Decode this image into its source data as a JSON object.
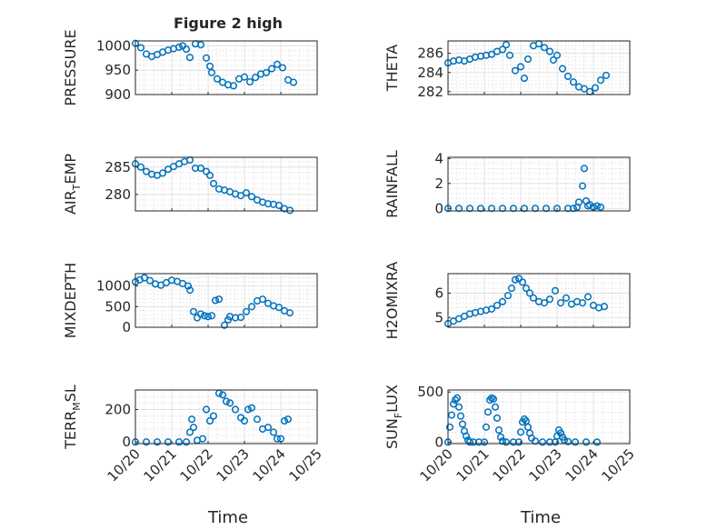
{
  "figure": {
    "title": "Figure 2 high"
  },
  "colors": {
    "marker": "#0072BD",
    "axis": "#262626",
    "background": "#ffffff"
  },
  "chart_data": [
    {
      "type": "scatter",
      "id": "pressure",
      "ylabel": "PRESSURE",
      "ylim": [
        900,
        1010
      ],
      "yticks": [
        900,
        950,
        1000
      ],
      "ytick_labels": [
        "900",
        "950",
        "1000"
      ],
      "x": [
        0.0,
        0.15,
        0.3,
        0.45,
        0.6,
        0.75,
        0.9,
        1.05,
        1.2,
        1.3,
        1.4,
        1.5,
        1.65,
        1.8,
        1.95,
        2.05,
        2.1,
        2.25,
        2.4,
        2.55,
        2.7,
        2.85,
        3.0,
        3.15,
        3.3,
        3.45,
        3.6,
        3.75,
        3.9,
        4.05,
        4.2,
        4.35
      ],
      "y": [
        1005,
        996,
        983,
        978,
        982,
        987,
        991,
        994,
        997,
        1000,
        993,
        976,
        1004,
        1002,
        975,
        958,
        945,
        932,
        925,
        920,
        918,
        932,
        936,
        926,
        935,
        942,
        945,
        953,
        962,
        955,
        930,
        925
      ]
    },
    {
      "type": "scatter",
      "id": "theta",
      "ylabel": "THETA",
      "ylim": [
        281.7,
        287.3
      ],
      "yticks": [
        282,
        284,
        286
      ],
      "ytick_labels": [
        "282",
        "284",
        "286"
      ],
      "x": [
        0.0,
        0.15,
        0.3,
        0.45,
        0.6,
        0.75,
        0.9,
        1.05,
        1.2,
        1.35,
        1.5,
        1.6,
        1.7,
        1.85,
        2.0,
        2.1,
        2.2,
        2.35,
        2.5,
        2.65,
        2.8,
        2.9,
        3.0,
        3.15,
        3.3,
        3.45,
        3.6,
        3.75,
        3.9,
        4.05,
        4.2,
        4.35
      ],
      "y": [
        285.0,
        285.2,
        285.3,
        285.2,
        285.4,
        285.6,
        285.7,
        285.8,
        285.9,
        286.2,
        286.4,
        286.9,
        285.8,
        284.2,
        284.6,
        283.4,
        285.4,
        286.8,
        287.0,
        286.6,
        286.2,
        285.3,
        285.8,
        284.4,
        283.6,
        283.0,
        282.5,
        282.3,
        282.0,
        282.4,
        283.2,
        283.7
      ]
    },
    {
      "type": "scatter",
      "id": "air_temp",
      "ylabel": "AIR",
      "ylabel_sub": "T",
      "ylabel_rest": "EMP",
      "ylim": [
        277.0,
        286.8
      ],
      "yticks": [
        280,
        285
      ],
      "ytick_labels": [
        "280",
        "285"
      ],
      "x": [
        0.0,
        0.15,
        0.3,
        0.45,
        0.6,
        0.75,
        0.9,
        1.05,
        1.2,
        1.35,
        1.5,
        1.65,
        1.8,
        1.95,
        2.05,
        2.15,
        2.3,
        2.45,
        2.6,
        2.75,
        2.9,
        3.05,
        3.2,
        3.35,
        3.5,
        3.65,
        3.8,
        3.95,
        4.1,
        4.25
      ],
      "y": [
        285.6,
        285.0,
        284.2,
        283.7,
        283.5,
        283.9,
        284.6,
        285.1,
        285.6,
        286.0,
        286.3,
        284.8,
        284.8,
        284.2,
        283.5,
        282.0,
        281.0,
        280.8,
        280.5,
        280.1,
        279.8,
        280.3,
        279.6,
        279.0,
        278.6,
        278.3,
        278.2,
        278.0,
        277.4,
        277.1
      ]
    },
    {
      "type": "scatter",
      "id": "rainfall",
      "ylabel": "RAINFALL",
      "ylim": [
        -0.2,
        4.1
      ],
      "yticks": [
        0,
        2,
        4
      ],
      "ytick_labels": [
        "0",
        "2",
        "4"
      ],
      "x": [
        0.0,
        0.3,
        0.6,
        0.9,
        1.2,
        1.5,
        1.8,
        2.1,
        2.4,
        2.7,
        3.0,
        3.3,
        3.45,
        3.55,
        3.6,
        3.7,
        3.75,
        3.8,
        3.85,
        3.9,
        4.0,
        4.1,
        4.2
      ],
      "y": [
        0,
        0,
        0,
        0,
        0,
        0,
        0,
        0,
        0,
        0,
        0,
        0,
        0,
        0.1,
        0.5,
        1.8,
        3.2,
        0.6,
        0.2,
        0.3,
        0.1,
        0.2,
        0.1
      ]
    },
    {
      "type": "scatter",
      "id": "mixdepth",
      "ylabel": "MIXDEPTH",
      "ylim": [
        0,
        1300
      ],
      "yticks": [
        0,
        500,
        1000
      ],
      "ytick_labels": [
        "0",
        "500",
        "1000"
      ],
      "x": [
        0.0,
        0.12,
        0.25,
        0.4,
        0.55,
        0.7,
        0.85,
        1.0,
        1.15,
        1.3,
        1.45,
        1.5,
        1.6,
        1.7,
        1.8,
        1.9,
        2.0,
        2.1,
        2.2,
        2.3,
        2.45,
        2.55,
        2.6,
        2.75,
        2.9,
        3.05,
        3.2,
        3.35,
        3.5,
        3.65,
        3.8,
        3.95,
        4.1,
        4.25
      ],
      "y": [
        1100,
        1150,
        1200,
        1130,
        1050,
        1020,
        1080,
        1140,
        1110,
        1060,
        1000,
        900,
        380,
        230,
        320,
        280,
        260,
        280,
        650,
        680,
        50,
        180,
        260,
        230,
        240,
        380,
        500,
        640,
        680,
        580,
        520,
        480,
        400,
        350
      ]
    },
    {
      "type": "scatter",
      "id": "h2omixra",
      "ylabel": "H2OMIXRA",
      "ylim": [
        4.6,
        6.8
      ],
      "yticks": [
        5,
        6
      ],
      "ytick_labels": [
        "5",
        "6"
      ],
      "x": [
        0.0,
        0.15,
        0.3,
        0.45,
        0.6,
        0.75,
        0.9,
        1.05,
        1.2,
        1.35,
        1.5,
        1.65,
        1.75,
        1.85,
        1.95,
        2.05,
        2.15,
        2.25,
        2.35,
        2.5,
        2.65,
        2.8,
        2.95,
        3.1,
        3.25,
        3.4,
        3.55,
        3.7,
        3.85,
        4.0,
        4.15,
        4.3
      ],
      "y": [
        4.75,
        4.85,
        4.95,
        5.05,
        5.15,
        5.2,
        5.25,
        5.3,
        5.35,
        5.5,
        5.65,
        5.9,
        6.2,
        6.55,
        6.6,
        6.45,
        6.2,
        6.0,
        5.8,
        5.65,
        5.6,
        5.75,
        6.1,
        5.6,
        5.8,
        5.55,
        5.65,
        5.6,
        5.85,
        5.5,
        5.4,
        5.45
      ]
    },
    {
      "type": "scatter",
      "id": "terr_msl",
      "ylabel": "TERR",
      "ylabel_sub": "M",
      "ylabel_rest": "SL",
      "ylim": [
        -10,
        320
      ],
      "yticks": [
        0,
        200
      ],
      "ytick_labels": [
        "0",
        "200"
      ],
      "x": [
        0.0,
        0.3,
        0.6,
        0.9,
        1.2,
        1.4,
        1.5,
        1.55,
        1.6,
        1.7,
        1.85,
        1.95,
        2.05,
        2.15,
        2.3,
        2.4,
        2.5,
        2.6,
        2.75,
        2.9,
        3.0,
        3.1,
        3.2,
        3.35,
        3.5,
        3.65,
        3.8,
        3.9,
        4.0,
        4.1,
        4.2
      ],
      "y": [
        0,
        0,
        0,
        0,
        0,
        0,
        60,
        140,
        90,
        10,
        20,
        200,
        130,
        160,
        300,
        290,
        250,
        240,
        200,
        150,
        130,
        200,
        210,
        140,
        80,
        90,
        60,
        20,
        20,
        130,
        140
      ]
    },
    {
      "type": "scatter",
      "id": "sun_flux",
      "ylabel": "SUN",
      "ylabel_sub": "F",
      "ylabel_rest": "LUX",
      "ylim": [
        -15,
        520
      ],
      "yticks": [
        0,
        500
      ],
      "ytick_labels": [
        "0",
        "500"
      ],
      "x": [
        0.0,
        0.05,
        0.1,
        0.15,
        0.2,
        0.25,
        0.3,
        0.35,
        0.4,
        0.45,
        0.5,
        0.55,
        0.6,
        0.7,
        0.85,
        1.0,
        1.05,
        1.1,
        1.15,
        1.2,
        1.25,
        1.3,
        1.35,
        1.4,
        1.45,
        1.5,
        1.6,
        1.8,
        1.95,
        2.0,
        2.05,
        2.1,
        2.15,
        2.2,
        2.25,
        2.3,
        2.4,
        2.6,
        2.8,
        2.95,
        3.0,
        3.05,
        3.1,
        3.15,
        3.2,
        3.3,
        3.5,
        3.8,
        4.1
      ],
      "y": [
        0,
        150,
        270,
        380,
        420,
        440,
        350,
        260,
        180,
        110,
        60,
        20,
        0,
        0,
        0,
        0,
        150,
        300,
        420,
        440,
        430,
        350,
        240,
        120,
        50,
        10,
        0,
        0,
        0,
        100,
        200,
        230,
        210,
        150,
        90,
        40,
        10,
        0,
        0,
        0,
        60,
        120,
        90,
        50,
        20,
        5,
        0,
        0,
        0
      ]
    }
  ],
  "x_axis": {
    "label": "Time",
    "xlim": [
      0,
      5
    ],
    "ticks": [
      0,
      1,
      2,
      3,
      4,
      5
    ],
    "tick_labels": [
      "10/20",
      "10/21",
      "10/22",
      "10/23",
      "10/24",
      "10/25"
    ]
  }
}
